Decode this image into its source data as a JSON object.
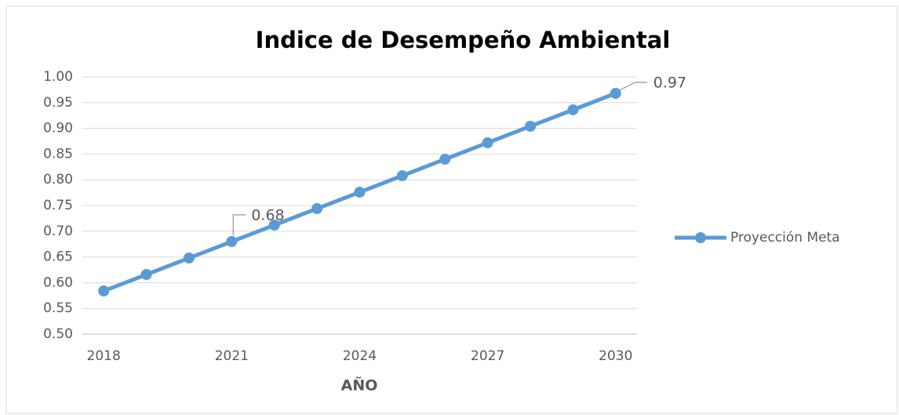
{
  "chart_data": {
    "type": "line",
    "title": "Indice de Desempeño Ambiental",
    "x_label": "AÑO",
    "x": [
      2018,
      2019,
      2020,
      2021,
      2022,
      2023,
      2024,
      2025,
      2026,
      2027,
      2028,
      2029,
      2030
    ],
    "series": [
      {
        "name": "Proyección Meta",
        "color": "#5b9bd5",
        "values": [
          0.584,
          0.616,
          0.648,
          0.68,
          0.712,
          0.744,
          0.776,
          0.808,
          0.84,
          0.872,
          0.904,
          0.936,
          0.968
        ],
        "value_labels": [
          null,
          null,
          null,
          "0.68",
          null,
          null,
          null,
          null,
          null,
          null,
          null,
          null,
          "0.97"
        ]
      }
    ],
    "xlim": [
      2017.5,
      2030.5
    ],
    "xticks": [
      2018,
      2021,
      2024,
      2027,
      2030
    ],
    "ylim": [
      0.5,
      1.0
    ],
    "yticks": [
      {
        "value": 0.5,
        "label": "0.50"
      },
      {
        "value": 0.55,
        "label": "0.55"
      },
      {
        "value": 0.6,
        "label": "0.60"
      },
      {
        "value": 0.65,
        "label": "0.65"
      },
      {
        "value": 0.7,
        "label": "0.70"
      },
      {
        "value": 0.75,
        "label": "0.75"
      },
      {
        "value": 0.8,
        "label": "0.80"
      },
      {
        "value": 0.85,
        "label": "0.85"
      },
      {
        "value": 0.9,
        "label": "0.90"
      },
      {
        "value": 0.95,
        "label": "0.95"
      },
      {
        "value": 1.0,
        "label": "1.00"
      }
    ],
    "grid": true,
    "legend": "right"
  }
}
